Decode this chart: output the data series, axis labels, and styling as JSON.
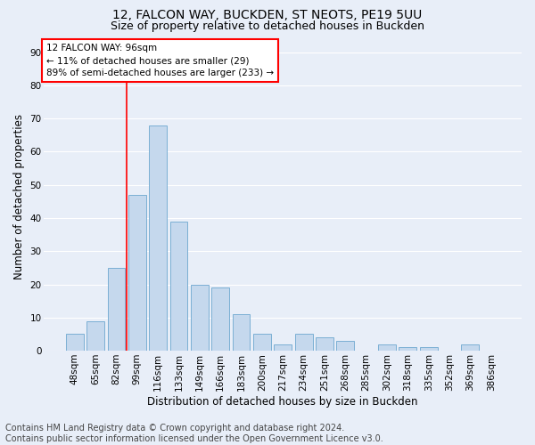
{
  "title1": "12, FALCON WAY, BUCKDEN, ST NEOTS, PE19 5UU",
  "title2": "Size of property relative to detached houses in Buckden",
  "xlabel": "Distribution of detached houses by size in Buckden",
  "ylabel": "Number of detached properties",
  "footnote1": "Contains HM Land Registry data © Crown copyright and database right 2024.",
  "footnote2": "Contains public sector information licensed under the Open Government Licence v3.0.",
  "bar_labels": [
    "48sqm",
    "65sqm",
    "82sqm",
    "99sqm",
    "116sqm",
    "133sqm",
    "149sqm",
    "166sqm",
    "183sqm",
    "200sqm",
    "217sqm",
    "234sqm",
    "251sqm",
    "268sqm",
    "285sqm",
    "302sqm",
    "318sqm",
    "335sqm",
    "352sqm",
    "369sqm",
    "386sqm"
  ],
  "bar_values": [
    5,
    9,
    25,
    47,
    68,
    39,
    20,
    19,
    11,
    5,
    2,
    5,
    4,
    3,
    0,
    2,
    1,
    1,
    0,
    2,
    0
  ],
  "bar_color": "#c5d8ed",
  "bar_edge_color": "#7bafd4",
  "vline_x": 2.5,
  "vline_color": "red",
  "annotation_title": "12 FALCON WAY: 96sqm",
  "annotation_line1": "← 11% of detached houses are smaller (29)",
  "annotation_line2": "89% of semi-detached houses are larger (233) →",
  "annotation_box_color": "white",
  "annotation_box_edge_color": "red",
  "ylim": [
    0,
    93
  ],
  "yticks": [
    0,
    10,
    20,
    30,
    40,
    50,
    60,
    70,
    80,
    90
  ],
  "bg_color": "#e8eef8",
  "grid_color": "white",
  "title1_fontsize": 10,
  "title2_fontsize": 9,
  "footnote_fontsize": 7,
  "xlabel_fontsize": 8.5,
  "ylabel_fontsize": 8.5,
  "tick_fontsize": 7.5,
  "annotation_fontsize": 7.5
}
